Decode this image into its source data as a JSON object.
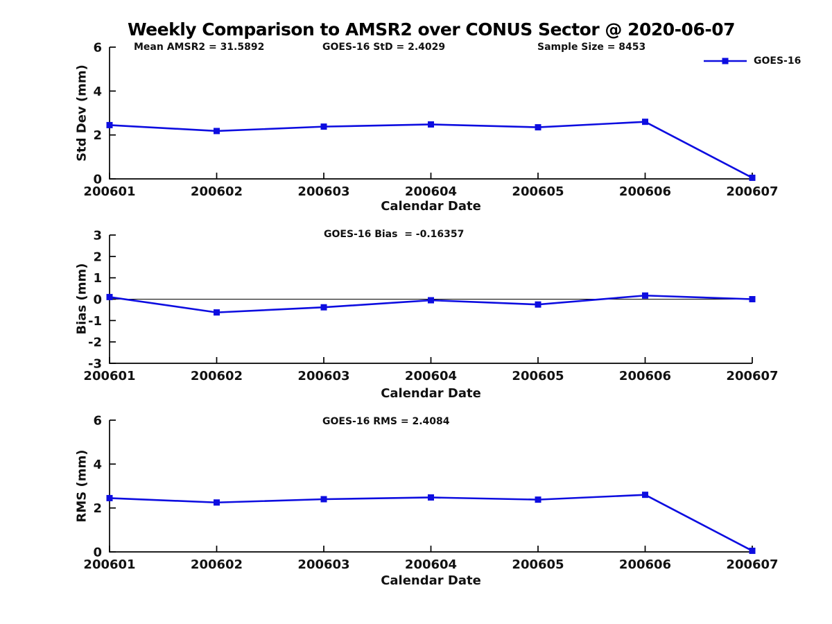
{
  "title": "Weekly Comparison to AMSR2 over CONUS Sector @ 2020-06-07",
  "legend": {
    "label": "GOES-16"
  },
  "colors": {
    "line": "#0d0de0",
    "axis": "#000000",
    "text": "#111111"
  },
  "stats": {
    "mean_amsr2": "31.5892",
    "goes16_std": "2.4029",
    "sample_size": "8453",
    "goes16_bias": "-0.16357",
    "goes16_rms": "2.4084"
  },
  "chart_data": [
    {
      "type": "line",
      "ylabel": "Std Dev (mm)",
      "xlabel": "Calendar Date",
      "categories": [
        "200601",
        "200602",
        "200603",
        "200604",
        "200605",
        "200606",
        "200607"
      ],
      "series": [
        {
          "name": "GOES-16",
          "values": [
            2.45,
            2.18,
            2.38,
            2.48,
            2.35,
            2.6,
            0.05
          ]
        }
      ],
      "ylim": [
        0,
        6
      ],
      "yticks": [
        0,
        2,
        4,
        6
      ],
      "grid": false,
      "zero_line": false,
      "legend_position": "top-right",
      "annotations": [
        "Mean AMSR2 = 31.5892",
        "GOES-16 StD = 2.4029",
        "Sample Size = 8453"
      ]
    },
    {
      "type": "line",
      "ylabel": "Bias (mm)",
      "xlabel": "Calendar Date",
      "categories": [
        "200601",
        "200602",
        "200603",
        "200604",
        "200605",
        "200606",
        "200607"
      ],
      "series": [
        {
          "name": "GOES-16",
          "values": [
            0.1,
            -0.62,
            -0.38,
            -0.05,
            -0.25,
            0.17,
            0.0
          ]
        }
      ],
      "ylim": [
        -3,
        3
      ],
      "yticks": [
        -3,
        -2,
        -1,
        0,
        1,
        2,
        3
      ],
      "grid": false,
      "zero_line": true,
      "legend_position": "none",
      "annotations": [
        "GOES-16 Bias  = -0.16357"
      ]
    },
    {
      "type": "line",
      "ylabel": "RMS (mm)",
      "xlabel": "Calendar Date",
      "categories": [
        "200601",
        "200602",
        "200603",
        "200604",
        "200605",
        "200606",
        "200607"
      ],
      "series": [
        {
          "name": "GOES-16",
          "values": [
            2.45,
            2.25,
            2.4,
            2.48,
            2.38,
            2.6,
            0.05
          ]
        }
      ],
      "ylim": [
        0,
        6
      ],
      "yticks": [
        0,
        2,
        4,
        6
      ],
      "grid": false,
      "zero_line": false,
      "legend_position": "none",
      "annotations": [
        "GOES-16 RMS = 2.4084"
      ]
    }
  ]
}
